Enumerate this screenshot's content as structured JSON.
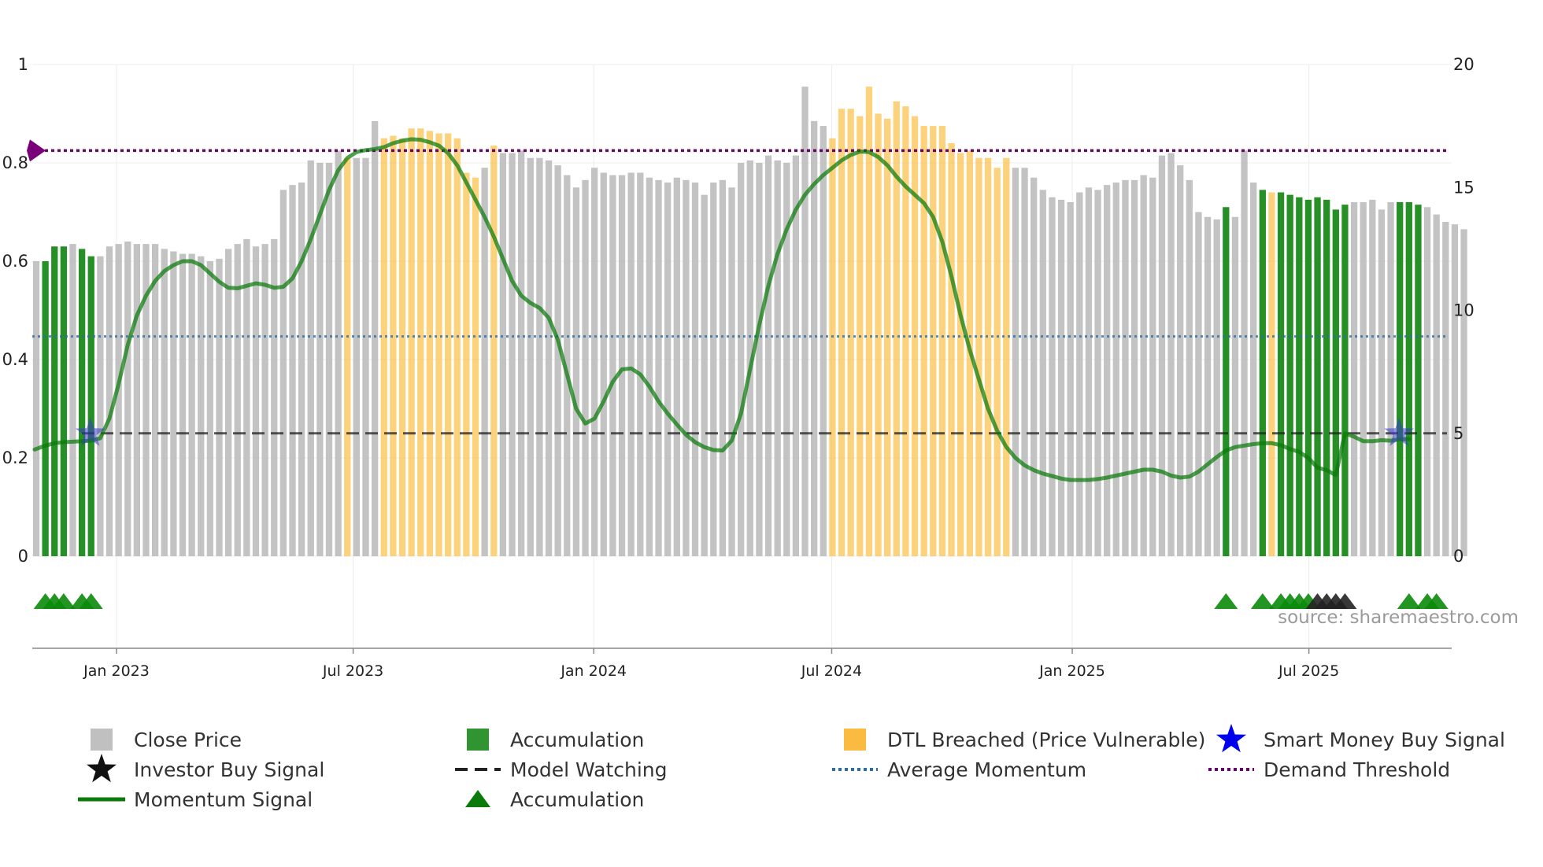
{
  "chart_data": {
    "type": "bar",
    "title": "",
    "x_start": "2022-10-17",
    "x_step_days": 7,
    "x_ticks": [
      "Jan 2023",
      "Jul 2023",
      "Jan 2024",
      "Jul 2024",
      "Jan 2025",
      "Jul 2025"
    ],
    "x_tick_dates": [
      "2023-01-01",
      "2023-07-01",
      "2024-01-01",
      "2024-07-01",
      "2025-01-01",
      "2025-07-01"
    ],
    "left_axis": {
      "ticks": [
        0,
        0.2,
        0.4,
        0.6,
        0.8,
        1
      ],
      "tick_labels": [
        "0",
        "0.2",
        "0.4",
        "0.6",
        "0.8",
        "1"
      ],
      "ylim": [
        0,
        1
      ],
      "label": ""
    },
    "right_axis": {
      "ticks": [
        0,
        5,
        10,
        15,
        20
      ],
      "tick_labels": [
        "0",
        "5",
        "10",
        "15",
        "20"
      ],
      "ylim": [
        0,
        20
      ],
      "label": ""
    },
    "close_price": [
      12.0,
      12.0,
      12.6,
      12.6,
      12.7,
      12.5,
      12.2,
      12.2,
      12.6,
      12.7,
      12.8,
      12.7,
      12.7,
      12.7,
      12.5,
      12.4,
      12.3,
      12.3,
      12.2,
      12.0,
      12.1,
      12.5,
      12.7,
      12.9,
      12.6,
      12.7,
      12.9,
      14.9,
      15.1,
      15.2,
      16.1,
      16.0,
      16.0,
      16.5,
      16.2,
      16.2,
      16.2,
      17.7,
      17.0,
      17.1,
      17.0,
      17.4,
      17.4,
      17.3,
      17.2,
      17.2,
      17.0,
      15.6,
      15.4,
      15.8,
      16.7,
      16.4,
      16.4,
      16.5,
      16.2,
      16.2,
      16.1,
      15.9,
      15.5,
      15.0,
      15.3,
      15.8,
      15.6,
      15.5,
      15.5,
      15.6,
      15.6,
      15.4,
      15.3,
      15.2,
      15.4,
      15.3,
      15.2,
      14.7,
      15.2,
      15.3,
      15.0,
      16.0,
      16.1,
      16.0,
      16.3,
      16.1,
      16.0,
      16.3,
      19.1,
      17.7,
      17.5,
      17.0,
      18.2,
      18.2,
      17.9,
      19.1,
      18.0,
      17.8,
      18.5,
      18.3,
      17.9,
      17.5,
      17.5,
      17.5,
      16.8,
      16.4,
      16.5,
      16.2,
      16.2,
      15.8,
      16.2,
      15.8,
      15.8,
      15.4,
      14.9,
      14.6,
      14.5,
      14.4,
      14.8,
      15.0,
      14.9,
      15.1,
      15.2,
      15.3,
      15.3,
      15.5,
      15.4,
      16.3,
      16.4,
      15.9,
      15.3,
      14.0,
      13.8,
      13.7,
      14.2,
      13.8,
      16.5,
      15.2,
      14.9,
      14.8,
      14.8,
      14.7,
      14.6,
      14.5,
      14.6,
      14.5,
      14.1,
      14.3,
      14.4,
      14.4,
      14.5,
      14.1,
      14.4,
      14.4,
      14.4,
      14.3,
      14.2,
      13.9,
      13.6,
      13.5,
      13.3
    ],
    "series_color": {
      "close": "#b9b9b9",
      "accumulation": "#1a8a1a",
      "dtl": "#fbbf45"
    },
    "accumulation_bars": [
      1,
      2,
      3,
      5,
      6,
      130,
      134,
      136,
      137,
      138,
      139,
      140,
      141,
      142,
      143,
      149,
      150,
      151
    ],
    "dtl_breached_bars": [
      34,
      38,
      39,
      40,
      41,
      42,
      43,
      44,
      45,
      46,
      47,
      48,
      50,
      87,
      88,
      89,
      90,
      91,
      92,
      93,
      94,
      95,
      96,
      97,
      98,
      99,
      100,
      101,
      102,
      103,
      104,
      105,
      106,
      135
    ],
    "momentum": [
      0.217,
      0.225,
      0.23,
      0.232,
      0.233,
      0.234,
      0.235,
      0.24,
      0.28,
      0.35,
      0.43,
      0.49,
      0.53,
      0.56,
      0.58,
      0.592,
      0.6,
      0.6,
      0.592,
      0.575,
      0.558,
      0.546,
      0.545,
      0.55,
      0.555,
      0.552,
      0.546,
      0.548,
      0.565,
      0.6,
      0.645,
      0.695,
      0.745,
      0.785,
      0.81,
      0.822,
      0.826,
      0.828,
      0.832,
      0.84,
      0.845,
      0.848,
      0.847,
      0.842,
      0.835,
      0.82,
      0.795,
      0.76,
      0.725,
      0.69,
      0.65,
      0.605,
      0.56,
      0.53,
      0.515,
      0.505,
      0.485,
      0.44,
      0.37,
      0.3,
      0.27,
      0.28,
      0.315,
      0.355,
      0.38,
      0.382,
      0.37,
      0.345,
      0.315,
      0.29,
      0.268,
      0.247,
      0.232,
      0.222,
      0.216,
      0.215,
      0.235,
      0.29,
      0.38,
      0.47,
      0.55,
      0.615,
      0.665,
      0.705,
      0.735,
      0.757,
      0.775,
      0.79,
      0.805,
      0.816,
      0.823,
      0.822,
      0.812,
      0.795,
      0.772,
      0.752,
      0.735,
      0.718,
      0.69,
      0.64,
      0.57,
      0.49,
      0.42,
      0.36,
      0.3,
      0.255,
      0.222,
      0.2,
      0.185,
      0.175,
      0.168,
      0.163,
      0.158,
      0.155,
      0.155,
      0.155,
      0.157,
      0.16,
      0.164,
      0.168,
      0.172,
      0.176,
      0.176,
      0.172,
      0.164,
      0.16,
      0.162,
      0.172,
      0.187,
      0.202,
      0.215,
      0.222,
      0.225,
      0.228,
      0.23,
      0.23,
      0.226,
      0.218,
      0.212,
      0.2,
      0.18,
      0.175,
      0.165,
      0.25,
      0.243,
      0.234,
      0.234,
      0.236,
      0.235,
      0.238,
      0.238
    ],
    "average_momentum": 0.447,
    "model_watching": 0.25,
    "demand_threshold": 0.825,
    "accumulation_markers": [
      1,
      2,
      3,
      5,
      6,
      130,
      134,
      136,
      137,
      138,
      139,
      150,
      152,
      153
    ],
    "investor_buy_markers": [
      140,
      141,
      142,
      143
    ],
    "smart_money_markers": [
      6,
      149
    ],
    "legend": [
      {
        "label": "Close Price",
        "kind": "square",
        "color": "#b9b9b9"
      },
      {
        "label": "Accumulation",
        "kind": "square",
        "color": "#1a8a1a"
      },
      {
        "label": "DTL Breached (Price Vulnerable)",
        "kind": "square",
        "color": "#fbb22b"
      },
      {
        "label": "Smart Money Buy Signal",
        "kind": "star",
        "color": "#0000ee"
      },
      {
        "label": "Investor Buy Signal",
        "kind": "star",
        "color": "#111111"
      },
      {
        "label": "Model Watching",
        "kind": "dash",
        "color": "#222222"
      },
      {
        "label": "Average Momentum",
        "kind": "dot",
        "color": "#2e6da4"
      },
      {
        "label": "Demand Threshold",
        "kind": "dot",
        "color": "#6a006a"
      },
      {
        "label": "Momentum Signal",
        "kind": "line",
        "color": "#0a7a0a"
      },
      {
        "label": "Accumulation",
        "kind": "triangle",
        "color": "#0a7a0a"
      }
    ],
    "source_text": "source: sharemaestro.com"
  }
}
